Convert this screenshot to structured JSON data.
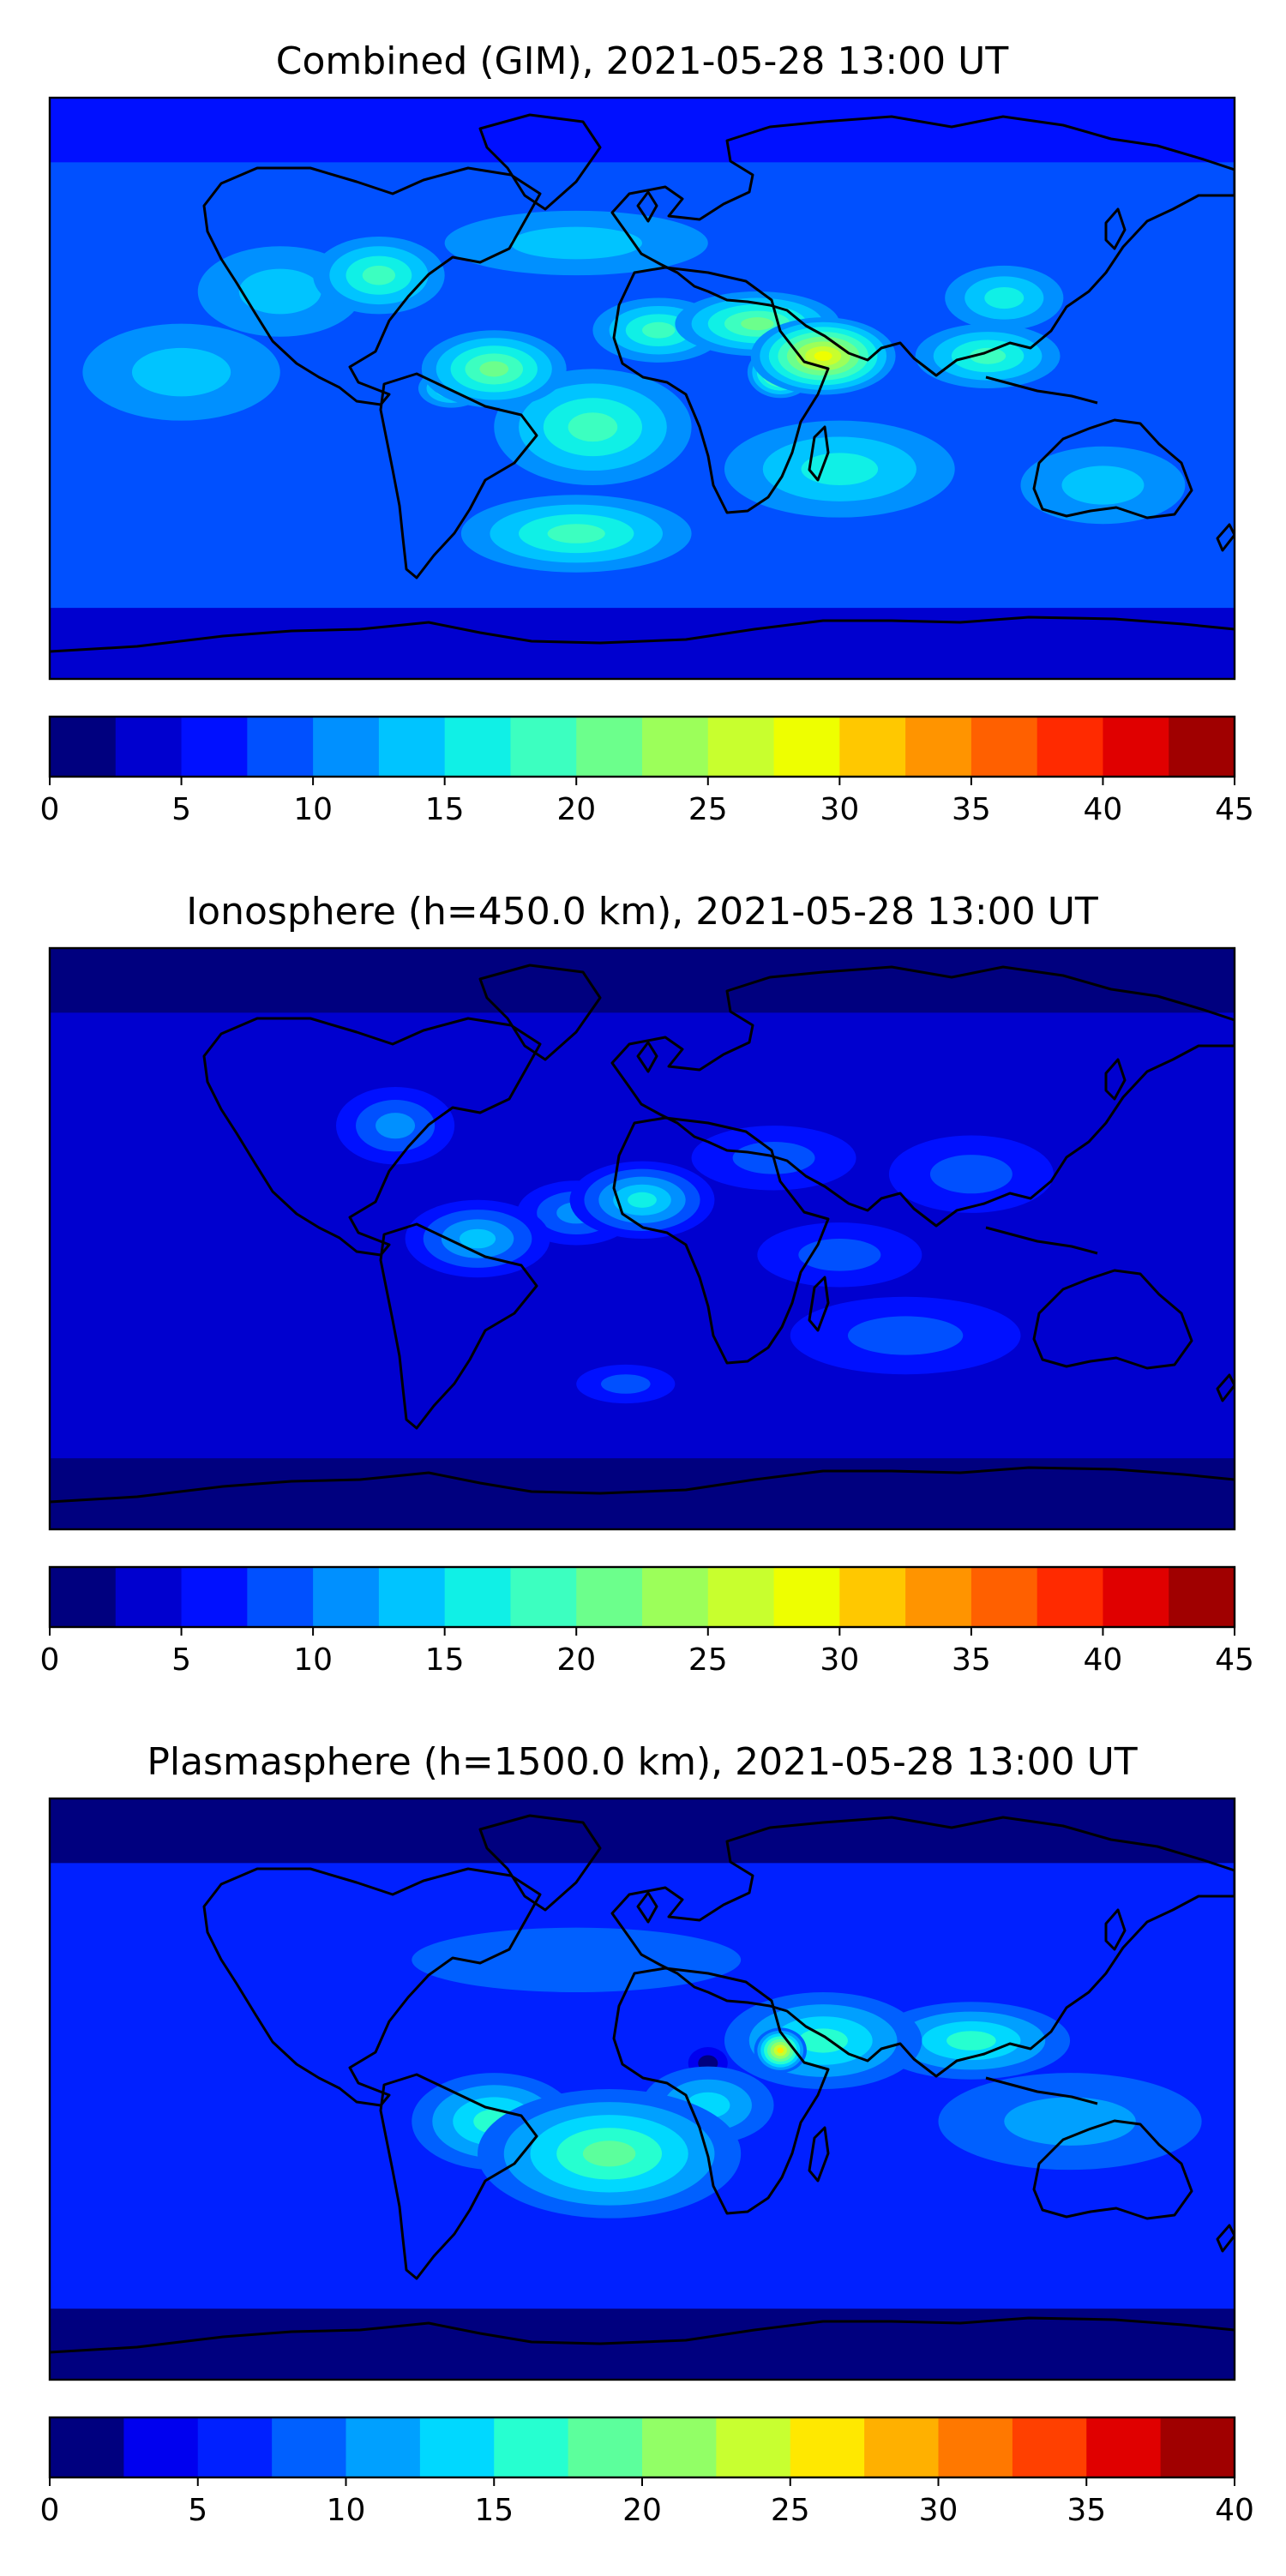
{
  "chart_data": [
    {
      "type": "heatmap",
      "title": "Combined (GIM), 2021-05-28 13:00 UT",
      "colorbar": {
        "min": 0,
        "max": 45,
        "step": 2.5,
        "ticks": [
          0,
          5,
          10,
          15,
          20,
          25,
          30,
          35,
          40,
          45
        ],
        "tick_labels": [
          "0",
          "5",
          "10",
          "15",
          "20",
          "25",
          "30",
          "35",
          "40",
          "45"
        ]
      },
      "colormap": [
        "#00007f",
        "#0000cf",
        "#0010ff",
        "#0050ff",
        "#0090ff",
        "#00c4ff",
        "#10f0e6",
        "#3cffc0",
        "#6cff8c",
        "#9cff5a",
        "#c8ff2e",
        "#eeff00",
        "#ffc800",
        "#ff9400",
        "#ff6000",
        "#ff2a00",
        "#e00000",
        "#a00000"
      ],
      "blobs": [
        {
          "lon": 55,
          "lat": 10,
          "rx": 22,
          "ry": 12,
          "value": 20
        },
        {
          "lon": 42,
          "lat": 5,
          "rx": 10,
          "ry": 8,
          "value": 16
        },
        {
          "lon": 35,
          "lat": 20,
          "rx": 25,
          "ry": 10,
          "value": 12
        },
        {
          "lon": 5,
          "lat": 18,
          "rx": 20,
          "ry": 10,
          "value": 10
        },
        {
          "lon": -45,
          "lat": 6,
          "rx": 22,
          "ry": 12,
          "value": 12
        },
        {
          "lon": -58,
          "lat": 0,
          "rx": 10,
          "ry": 6,
          "value": 8
        },
        {
          "lon": -15,
          "lat": -12,
          "rx": 30,
          "ry": 18,
          "value": 10
        },
        {
          "lon": -20,
          "lat": -45,
          "rx": 35,
          "ry": 12,
          "value": 8
        },
        {
          "lon": -5,
          "lat": -48,
          "rx": 10,
          "ry": 6,
          "value": 5
        },
        {
          "lon": 105,
          "lat": 10,
          "rx": 22,
          "ry": 10,
          "value": 8
        },
        {
          "lon": 110,
          "lat": 28,
          "rx": 18,
          "ry": 10,
          "value": 6
        },
        {
          "lon": -80,
          "lat": 35,
          "rx": 20,
          "ry": 12,
          "value": 8
        },
        {
          "lon": -110,
          "lat": 30,
          "rx": 25,
          "ry": 14,
          "value": 4
        },
        {
          "lon": -20,
          "lat": 45,
          "rx": 40,
          "ry": 10,
          "value": 4
        },
        {
          "lon": 60,
          "lat": -25,
          "rx": 35,
          "ry": 15,
          "value": 6
        },
        {
          "lon": 140,
          "lat": -30,
          "rx": 25,
          "ry": 12,
          "value": 4
        },
        {
          "lon": -140,
          "lat": 5,
          "rx": 30,
          "ry": 15,
          "value": 3
        }
      ],
      "base_value": 8
    },
    {
      "type": "heatmap",
      "title": "Ionosphere  (h=450.0 km), 2021-05-28 13:00 UT",
      "colorbar": {
        "min": 0,
        "max": 45,
        "step": 2.5,
        "ticks": [
          0,
          5,
          10,
          15,
          20,
          25,
          30,
          35,
          40,
          45
        ],
        "tick_labels": [
          "0",
          "5",
          "10",
          "15",
          "20",
          "25",
          "30",
          "35",
          "40",
          "45"
        ]
      },
      "colormap": [
        "#00007f",
        "#0000cf",
        "#0010ff",
        "#0050ff",
        "#0090ff",
        "#00c4ff",
        "#10f0e6",
        "#3cffc0",
        "#6cff8c",
        "#9cff5a",
        "#c8ff2e",
        "#eeff00",
        "#ffc800",
        "#ff9400",
        "#ff6000",
        "#ff2a00",
        "#e00000",
        "#a00000"
      ],
      "blobs": [
        {
          "lon": 0,
          "lat": 12,
          "rx": 22,
          "ry": 12,
          "value": 12
        },
        {
          "lon": -20,
          "lat": 8,
          "rx": 18,
          "ry": 10,
          "value": 6
        },
        {
          "lon": -50,
          "lat": 0,
          "rx": 22,
          "ry": 12,
          "value": 9
        },
        {
          "lon": -75,
          "lat": 35,
          "rx": 18,
          "ry": 12,
          "value": 6
        },
        {
          "lon": 40,
          "lat": 25,
          "rx": 25,
          "ry": 10,
          "value": 4
        },
        {
          "lon": 60,
          "lat": -5,
          "rx": 25,
          "ry": 10,
          "value": 4
        },
        {
          "lon": -5,
          "lat": -45,
          "rx": 15,
          "ry": 6,
          "value": 5
        },
        {
          "lon": 100,
          "lat": 20,
          "rx": 25,
          "ry": 12,
          "value": 3
        },
        {
          "lon": 80,
          "lat": -30,
          "rx": 35,
          "ry": 12,
          "value": 3
        }
      ],
      "base_value": 4
    },
    {
      "type": "heatmap",
      "title": "Plasmasphere (h=1500.0 km), 2021-05-28 13:00 UT",
      "colorbar": {
        "min": 0,
        "max": 40,
        "step": 2.5,
        "ticks": [
          0,
          5,
          10,
          15,
          20,
          25,
          30,
          35,
          40
        ],
        "tick_labels": [
          "0",
          "5",
          "10",
          "15",
          "20",
          "25",
          "30",
          "35",
          "40"
        ]
      },
      "colormap": [
        "#00007f",
        "#0000ef",
        "#0020ff",
        "#0060ff",
        "#00a0ff",
        "#00d8ff",
        "#26ffd0",
        "#5cff9c",
        "#92ff66",
        "#c8ff30",
        "#ffe800",
        "#ffb000",
        "#ff7800",
        "#ff4000",
        "#e00000",
        "#a00000"
      ],
      "blobs": [
        {
          "lon": 42,
          "lat": 12,
          "rx": 8,
          "ry": 7,
          "value": 20
        },
        {
          "lon": 55,
          "lat": 15,
          "rx": 30,
          "ry": 15,
          "value": 10
        },
        {
          "lon": 100,
          "lat": 15,
          "rx": 30,
          "ry": 12,
          "value": 8
        },
        {
          "lon": -10,
          "lat": -20,
          "rx": 40,
          "ry": 20,
          "value": 12
        },
        {
          "lon": -45,
          "lat": -10,
          "rx": 25,
          "ry": 15,
          "value": 8
        },
        {
          "lon": 20,
          "lat": -5,
          "rx": 20,
          "ry": 12,
          "value": 6
        },
        {
          "lon": 130,
          "lat": -10,
          "rx": 40,
          "ry": 15,
          "value": 5
        },
        {
          "lon": 20,
          "lat": 8,
          "rx": 6,
          "ry": 5,
          "value": -3
        },
        {
          "lon": -20,
          "lat": 40,
          "rx": 50,
          "ry": 10,
          "value": 2
        }
      ],
      "base_value": 5
    }
  ]
}
